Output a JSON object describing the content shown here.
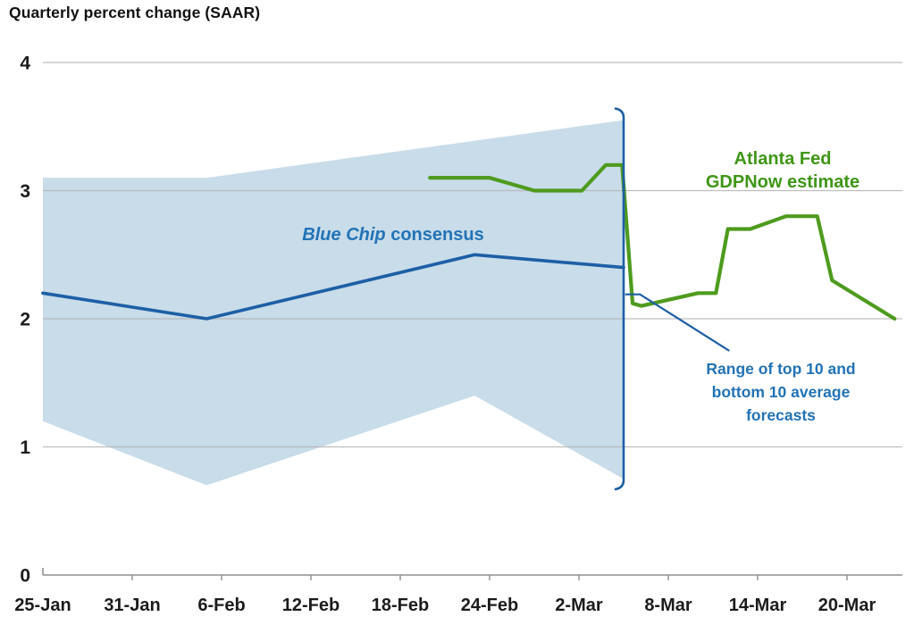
{
  "page": {
    "title": "Quarterly percent change (SAAR)"
  },
  "labels": {
    "blue_chip": {
      "italic": "Blue Chip",
      "rest": " consensus",
      "color": "#2273b6"
    },
    "gdpnow": {
      "line1": "Atlanta Fed",
      "line2": "GDPNow estimate",
      "color": "#3f9617"
    },
    "range": {
      "line1": "Range of top 10 and",
      "line2": "bottom 10 average",
      "line3": "forecasts",
      "color": "#2273b6"
    }
  },
  "chart_data": {
    "type": "line",
    "title": "Quarterly percent change (SAAR)",
    "x_unit": "days since 25-Jan",
    "x_tick_labels": [
      "25-Jan",
      "31-Jan",
      "6-Feb",
      "12-Feb",
      "18-Feb",
      "24-Feb",
      "2-Mar",
      "8-Mar",
      "14-Mar",
      "20-Mar"
    ],
    "x_tick_days": [
      0,
      6,
      12,
      18,
      24,
      30,
      36,
      42,
      48,
      54
    ],
    "x_domain_days": [
      0,
      57.8
    ],
    "ylim": [
      0,
      4
    ],
    "y_ticks": [
      0,
      1,
      2,
      3,
      4
    ],
    "grid": "horizontal gridlines at integers, light gray",
    "legend_position": "inline text annotations",
    "band": {
      "name": "Range of top 10 and bottom 10 average forecasts",
      "color": "#c8dce9",
      "upper_day_value": [
        [
          0,
          3.1
        ],
        [
          11,
          3.1
        ],
        [
          39,
          3.55
        ]
      ],
      "lower_day_value": [
        [
          0,
          1.2
        ],
        [
          11,
          0.7
        ],
        [
          29,
          1.4
        ],
        [
          39,
          0.75
        ]
      ]
    },
    "series": [
      {
        "name": "Blue Chip consensus",
        "color": "#1d5fa5",
        "width": 3.6,
        "points_day_value": [
          [
            0,
            2.2
          ],
          [
            11,
            2.0
          ],
          [
            29,
            2.5
          ],
          [
            39,
            2.4
          ]
        ]
      },
      {
        "name": "Atlanta Fed GDPNow estimate",
        "color": "#4e9b1e",
        "width": 4.2,
        "points_day_value": [
          [
            26,
            3.1
          ],
          [
            30,
            3.1
          ],
          [
            33,
            3.0
          ],
          [
            36.2,
            3.0
          ],
          [
            37.8,
            3.2
          ],
          [
            38.9,
            3.2
          ],
          [
            39.6,
            2.12
          ],
          [
            40.2,
            2.1
          ],
          [
            44,
            2.2
          ],
          [
            45.2,
            2.2
          ],
          [
            46,
            2.7
          ],
          [
            47.5,
            2.7
          ],
          [
            49.9,
            2.8
          ],
          [
            52,
            2.8
          ],
          [
            53,
            2.3
          ],
          [
            57.2,
            2.0
          ]
        ]
      }
    ],
    "bracket": {
      "day": 39,
      "from_value": 0.68,
      "to_value": 3.63,
      "color": "#1d5fa5"
    },
    "leader_line": {
      "color": "#1d5fa5",
      "points_day_value": [
        [
          39.1,
          2.19
        ],
        [
          40.1,
          2.19
        ],
        [
          46.1,
          1.75
        ]
      ]
    },
    "axis_colors": {
      "gridline": "#b4b4b4",
      "baseline": "#8f8f8f",
      "tick_text": "#1c1c1c"
    }
  }
}
